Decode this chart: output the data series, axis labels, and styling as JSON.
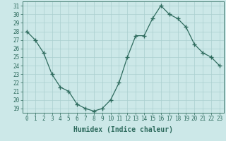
{
  "x": [
    0,
    1,
    2,
    3,
    4,
    5,
    6,
    7,
    8,
    9,
    10,
    11,
    12,
    13,
    14,
    15,
    16,
    17,
    18,
    19,
    20,
    21,
    22,
    23
  ],
  "y": [
    28,
    27,
    25.5,
    23,
    21.5,
    21,
    19.5,
    19,
    18.7,
    19,
    20,
    22,
    25,
    27.5,
    27.5,
    29.5,
    31,
    30,
    29.5,
    28.5,
    26.5,
    25.5,
    25,
    24
  ],
  "xlabel": "Humidex (Indice chaleur)",
  "xlim": [
    -0.5,
    23.5
  ],
  "ylim": [
    18.5,
    31.5
  ],
  "yticks": [
    19,
    20,
    21,
    22,
    23,
    24,
    25,
    26,
    27,
    28,
    29,
    30,
    31
  ],
  "xticks": [
    0,
    1,
    2,
    3,
    4,
    5,
    6,
    7,
    8,
    9,
    10,
    11,
    12,
    13,
    14,
    15,
    16,
    17,
    18,
    19,
    20,
    21,
    22,
    23
  ],
  "line_color": "#2e6b5e",
  "marker": "+",
  "marker_size": 4,
  "bg_color": "#cce8e8",
  "grid_color": "#aacfcf",
  "xlabel_bg": "#5a9090",
  "label_fontsize": 6.5,
  "tick_fontsize": 5.5,
  "xlabel_fontsize": 7
}
